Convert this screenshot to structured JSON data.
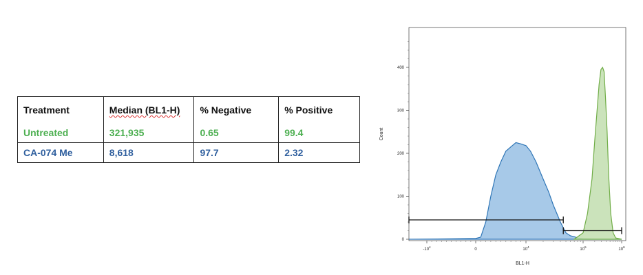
{
  "table": {
    "headers": [
      "Treatment",
      "Median (BL1-H)",
      "% Negative",
      "% Positive"
    ],
    "rows": [
      {
        "cells": [
          "Untreated",
          "321,935",
          "0.65",
          "99.4"
        ],
        "color": "#4caf50"
      },
      {
        "cells": [
          "CA-074 Me",
          "8,618",
          "97.7",
          "2.32"
        ],
        "color": "#2f5f9e"
      }
    ]
  },
  "chart_data": {
    "type": "area",
    "xlabel": "BL1-H",
    "ylabel": "Count",
    "x_scale": "biexponential",
    "ylim": [
      0,
      480
    ],
    "y_ticks": [
      {
        "value": 0,
        "label": "0"
      },
      {
        "value": 100,
        "label": "100"
      },
      {
        "value": 200,
        "label": "200"
      },
      {
        "value": 300,
        "label": "300"
      },
      {
        "value": 400,
        "label": "400"
      }
    ],
    "x_ticks": [
      {
        "value": -10000,
        "label": "-10",
        "exp": "4"
      },
      {
        "value": 0,
        "label": "0",
        "exp": ""
      },
      {
        "value": 10000,
        "label": "10",
        "exp": "4"
      },
      {
        "value": 100000,
        "label": "10",
        "exp": "5"
      },
      {
        "value": 1000000,
        "label": "10",
        "exp": "6"
      }
    ],
    "series": [
      {
        "name": "CA-074 Me",
        "fill": "#9dc3e6",
        "stroke": "#2e75b6",
        "points": [
          [
            -20000,
            0
          ],
          [
            -5000,
            1
          ],
          [
            0,
            2
          ],
          [
            1000,
            5
          ],
          [
            2000,
            40
          ],
          [
            3000,
            100
          ],
          [
            4000,
            150
          ],
          [
            5000,
            180
          ],
          [
            6000,
            205
          ],
          [
            7000,
            215
          ],
          [
            8000,
            225
          ],
          [
            9000,
            222
          ],
          [
            10000,
            218
          ],
          [
            12000,
            205
          ],
          [
            15000,
            180
          ],
          [
            20000,
            140
          ],
          [
            25000,
            110
          ],
          [
            30000,
            80
          ],
          [
            40000,
            40
          ],
          [
            50000,
            15
          ],
          [
            60000,
            8
          ],
          [
            70000,
            6
          ],
          [
            80000,
            3
          ],
          [
            100000,
            1
          ],
          [
            200000,
            0
          ],
          [
            1000000,
            0
          ]
        ]
      },
      {
        "name": "Untreated",
        "fill": "#c5e0b4",
        "stroke": "#70ad47",
        "points": [
          [
            70000,
            0
          ],
          [
            100000,
            15
          ],
          [
            130000,
            60
          ],
          [
            170000,
            140
          ],
          [
            200000,
            230
          ],
          [
            230000,
            300
          ],
          [
            260000,
            360
          ],
          [
            290000,
            395
          ],
          [
            320000,
            400
          ],
          [
            350000,
            390
          ],
          [
            380000,
            330
          ],
          [
            420000,
            250
          ],
          [
            460000,
            150
          ],
          [
            520000,
            60
          ],
          [
            600000,
            15
          ],
          [
            700000,
            3
          ],
          [
            1000000,
            0
          ]
        ]
      }
    ],
    "gates": [
      {
        "x1": -20000,
        "x2": 45000,
        "y": 45
      },
      {
        "x1": 45000,
        "x2": 1000000,
        "y": 20
      }
    ]
  }
}
